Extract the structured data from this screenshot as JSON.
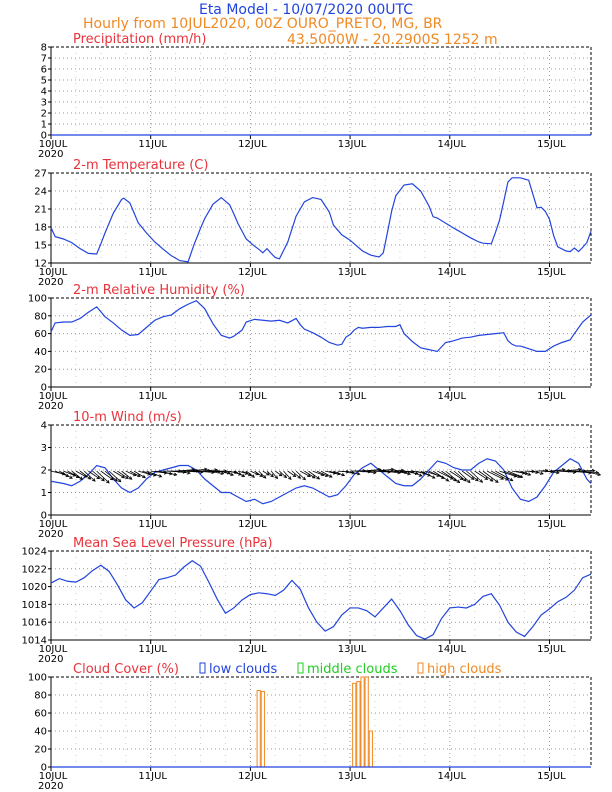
{
  "header": {
    "model_title": "Eta Model - 10/07/2020 00UTC",
    "subtitle": "Hourly from 10JUL2020, 00Z  OURO_PRETO, MG, BR",
    "coords": "43.5000W - 20.2900S    1252  m"
  },
  "colors": {
    "line": "#2244dd",
    "title": "#e8333b",
    "orange": "#f08a24",
    "green": "#22cc22",
    "blue": "#2244dd"
  },
  "x_axis": {
    "ticks": [
      "10JUL",
      "11JUL",
      "12JUL",
      "13JUL",
      "14JUL",
      "15JUL"
    ],
    "year": "2020",
    "tick_hours": [
      0,
      24,
      48,
      72,
      96,
      120
    ],
    "range_hours": [
      0,
      130
    ]
  },
  "chart_data": [
    {
      "type": "line",
      "title": "Precipitation (mm/h)",
      "ylim": [
        0,
        8
      ],
      "yticks": [
        0,
        1,
        2,
        3,
        4,
        5,
        6,
        7,
        8
      ],
      "series": [
        {
          "x": [
            0,
            130
          ],
          "y": [
            0,
            0
          ]
        }
      ]
    },
    {
      "type": "line",
      "title": "2-m Temperature (C)",
      "ylim": [
        12,
        27
      ],
      "yticks": [
        12,
        15,
        18,
        21,
        24,
        27
      ],
      "series": [
        {
          "x": [
            0,
            1,
            3,
            5,
            7,
            9,
            11,
            12,
            13,
            15,
            17,
            17.5,
            19,
            21,
            23,
            25,
            27,
            29,
            31,
            33,
            34.5,
            35.5,
            36,
            37,
            39,
            41,
            43,
            44,
            45,
            47,
            49,
            50,
            51,
            52,
            53,
            54,
            55,
            57,
            59,
            61,
            63,
            65,
            67,
            68,
            70,
            72,
            73,
            75,
            77,
            79,
            80,
            81,
            82,
            83,
            85,
            87,
            89,
            91,
            92,
            93,
            97,
            99,
            101,
            103,
            104,
            106,
            107,
            108,
            109,
            110,
            111,
            113,
            115,
            117,
            118,
            119,
            120,
            121,
            122,
            124,
            125,
            126,
            127,
            128,
            129,
            130
          ],
          "y": [
            17.9,
            16.4,
            16.0,
            15.4,
            14.4,
            13.6,
            13.5,
            15.2,
            17.0,
            20.3,
            22.6,
            22.8,
            22.0,
            18.7,
            17.0,
            15.5,
            14.3,
            13.2,
            12.4,
            12.2,
            15.2,
            16.9,
            17.8,
            19.4,
            21.8,
            22.9,
            21.7,
            20.2,
            18.6,
            16.0,
            14.8,
            14.3,
            13.7,
            14.4,
            13.6,
            12.9,
            12.7,
            15.5,
            19.8,
            22.2,
            22.9,
            22.6,
            20.5,
            18.3,
            16.7,
            15.8,
            15.2,
            14.0,
            13.3,
            13.0,
            13.7,
            17.1,
            20.6,
            23.2,
            25.0,
            25.2,
            24.0,
            21.5,
            19.7,
            19.5,
            17.8,
            17.0,
            16.2,
            15.5,
            15.3,
            15.2,
            17.1,
            19.2,
            22.3,
            25.5,
            26.2,
            26.2,
            25.8,
            21.2,
            21.3,
            20.6,
            19.3,
            16.6,
            14.7,
            14.0,
            13.9,
            14.5,
            13.9,
            14.6,
            15.4,
            17.3
          ]
        }
      ]
    },
    {
      "type": "line",
      "title": "2-m Relative Humidity (%)",
      "ylim": [
        0,
        100
      ],
      "yticks": [
        0,
        20,
        40,
        60,
        80,
        100
      ],
      "series": [
        {
          "x": [
            0,
            1,
            3,
            5,
            7,
            9,
            11,
            13,
            15,
            17,
            19,
            21,
            23,
            25,
            27,
            29,
            31,
            33,
            35,
            37,
            39,
            41,
            43,
            44,
            46,
            47,
            49,
            51,
            53,
            55,
            57,
            59,
            60,
            61,
            63,
            65,
            67,
            69,
            70,
            71,
            72,
            73,
            74,
            75,
            77,
            79,
            81,
            83,
            84,
            85,
            87,
            89,
            91,
            93,
            95,
            97,
            99,
            101,
            103,
            105,
            107,
            109,
            110,
            111,
            112,
            113,
            115,
            117,
            119,
            121,
            123,
            125,
            126,
            128,
            130
          ],
          "y": [
            62,
            72,
            73,
            73,
            77,
            84,
            90,
            79,
            72,
            64,
            58,
            59,
            67,
            75,
            79,
            81,
            88,
            93,
            97,
            88,
            71,
            58,
            55,
            57,
            64,
            73,
            76,
            75,
            74,
            75,
            72,
            77,
            70,
            65,
            61,
            56,
            50,
            47,
            48,
            56,
            59,
            64,
            67,
            66,
            67,
            67,
            68,
            68,
            70,
            60,
            51,
            44,
            42,
            40,
            50,
            52,
            55,
            56,
            58,
            59,
            60,
            61,
            52,
            48,
            46,
            46,
            43,
            40,
            40,
            46,
            50,
            53,
            60,
            73,
            81
          ]
        }
      ]
    },
    {
      "type": "line",
      "title": "10-m Wind (m/s)",
      "ylim": [
        0,
        4
      ],
      "yticks": [
        0,
        1,
        2,
        3,
        4
      ],
      "series": [
        {
          "x": [
            0,
            3,
            5,
            7,
            9,
            11,
            13,
            15,
            17,
            19,
            21,
            23,
            25,
            27,
            29,
            31,
            33,
            35,
            37,
            39,
            41,
            43,
            45,
            47,
            49,
            51,
            53,
            55,
            57,
            59,
            61,
            63,
            65,
            67,
            69,
            71,
            73,
            75,
            77,
            79,
            81,
            83,
            85,
            87,
            89,
            91,
            93,
            95,
            97,
            99,
            101,
            103,
            105,
            107,
            109,
            111,
            113,
            115,
            117,
            119,
            121,
            123,
            125,
            127,
            129,
            130
          ],
          "y": [
            1.5,
            1.4,
            1.3,
            1.5,
            1.8,
            2.2,
            2.1,
            1.6,
            1.2,
            1.0,
            1.2,
            1.6,
            1.9,
            2.0,
            2.1,
            2.2,
            2.2,
            2.0,
            1.6,
            1.3,
            1.0,
            1.0,
            0.8,
            0.6,
            0.7,
            0.5,
            0.6,
            0.8,
            1.0,
            1.2,
            1.3,
            1.2,
            1.0,
            0.8,
            0.9,
            1.3,
            1.8,
            2.1,
            2.3,
            2.0,
            1.7,
            1.4,
            1.3,
            1.3,
            1.6,
            2.0,
            2.4,
            2.3,
            2.1,
            2.0,
            2.0,
            2.3,
            2.5,
            2.4,
            2.0,
            1.2,
            0.7,
            0.6,
            0.8,
            1.3,
            1.9,
            2.2,
            2.5,
            2.3,
            1.6,
            1.4
          ]
        }
      ]
    },
    {
      "type": "line",
      "title": "Mean Sea Level Pressure (hPa)",
      "ylim": [
        1014,
        1024
      ],
      "yticks": [
        1014,
        1016,
        1018,
        1020,
        1022,
        1024
      ],
      "series": [
        {
          "x": [
            0,
            2,
            4,
            6,
            8,
            10,
            12,
            14,
            16,
            18,
            20,
            22,
            24,
            26,
            28,
            30,
            32,
            34,
            36,
            38,
            40,
            42,
            44,
            46,
            48,
            50,
            52,
            54,
            56,
            58,
            60,
            62,
            64,
            66,
            68,
            70,
            72,
            74,
            76,
            78,
            80,
            82,
            84,
            86,
            88,
            90,
            92,
            94,
            96,
            98,
            100,
            102,
            104,
            106,
            108,
            110,
            112,
            114,
            116,
            118,
            120,
            122,
            124,
            126,
            128,
            130
          ],
          "y": [
            1020.4,
            1020.9,
            1020.6,
            1020.5,
            1021.0,
            1021.8,
            1022.4,
            1021.7,
            1020.2,
            1018.5,
            1017.6,
            1018.2,
            1019.5,
            1020.8,
            1021.0,
            1021.3,
            1022.2,
            1022.9,
            1022.3,
            1020.5,
            1018.6,
            1017.0,
            1017.6,
            1018.5,
            1019.1,
            1019.3,
            1019.2,
            1019.0,
            1019.6,
            1020.7,
            1019.7,
            1017.6,
            1016.0,
            1015.0,
            1015.5,
            1016.8,
            1017.6,
            1017.6,
            1017.3,
            1016.6,
            1017.6,
            1018.6,
            1017.3,
            1015.7,
            1014.5,
            1014.1,
            1014.6,
            1016.4,
            1017.6,
            1017.7,
            1017.6,
            1018.0,
            1018.9,
            1019.2,
            1017.9,
            1016.0,
            1014.9,
            1014.4,
            1015.5,
            1016.8,
            1017.5,
            1018.3,
            1018.8,
            1019.6,
            1021.0,
            1021.4
          ]
        }
      ]
    },
    {
      "type": "bar",
      "title": "Cloud Cover (%)",
      "legend": [
        "low clouds",
        "middle clouds",
        "high clouds"
      ],
      "ylim": [
        0,
        100
      ],
      "yticks": [
        0,
        20,
        40,
        60,
        80,
        100
      ],
      "series": [
        {
          "name": "high clouds",
          "x": [
            50,
            51,
            73,
            74,
            75,
            76,
            77
          ],
          "y": [
            85,
            84,
            93,
            95,
            100,
            100,
            40
          ]
        },
        {
          "name": "low clouds",
          "x": [
            0,
            130
          ],
          "y": [
            0,
            0
          ]
        }
      ]
    }
  ]
}
